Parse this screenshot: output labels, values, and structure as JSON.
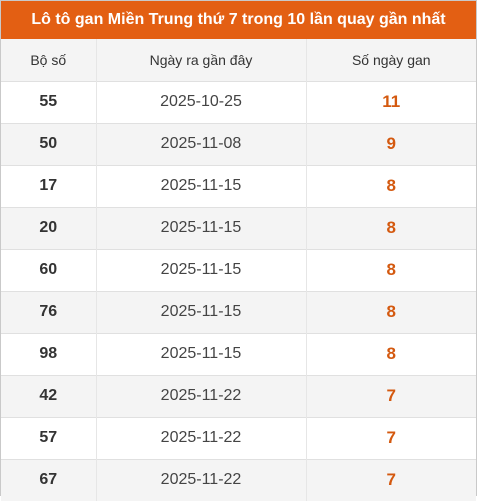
{
  "title": "Lô tô gan Miền Trung thứ 7 trong 10 lần quay gần nhất",
  "table": {
    "headers": [
      "Bộ số",
      "Ngày ra gần đây",
      "Số ngày gan"
    ],
    "rows": [
      {
        "number": "55",
        "date": "2025-10-25",
        "days": "11"
      },
      {
        "number": "50",
        "date": "2025-11-08",
        "days": "9"
      },
      {
        "number": "17",
        "date": "2025-11-15",
        "days": "8"
      },
      {
        "number": "20",
        "date": "2025-11-15",
        "days": "8"
      },
      {
        "number": "60",
        "date": "2025-11-15",
        "days": "8"
      },
      {
        "number": "76",
        "date": "2025-11-15",
        "days": "8"
      },
      {
        "number": "98",
        "date": "2025-11-15",
        "days": "8"
      },
      {
        "number": "42",
        "date": "2025-11-22",
        "days": "7"
      },
      {
        "number": "57",
        "date": "2025-11-22",
        "days": "7"
      },
      {
        "number": "67",
        "date": "2025-11-22",
        "days": "7"
      }
    ]
  },
  "colors": {
    "title_bg": "#e35f13",
    "days_text": "#d4590f"
  }
}
